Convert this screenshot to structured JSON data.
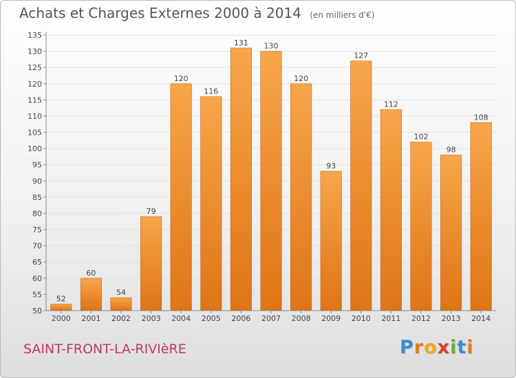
{
  "chart_data": {
    "type": "bar",
    "title": "Achats et Charges Externes 2000 à 2014",
    "subtitle": "(en milliers d'€)",
    "categories": [
      "2000",
      "2001",
      "2002",
      "2003",
      "2004",
      "2005",
      "2006",
      "2007",
      "2008",
      "2009",
      "2010",
      "2011",
      "2012",
      "2013",
      "2014"
    ],
    "values": [
      52,
      60,
      54,
      79,
      120,
      116,
      131,
      130,
      120,
      93,
      127,
      112,
      102,
      98,
      108
    ],
    "ylim": [
      50,
      135
    ],
    "yticks": [
      50,
      55,
      60,
      65,
      70,
      75,
      80,
      85,
      90,
      95,
      100,
      105,
      110,
      115,
      120,
      125,
      130,
      135
    ],
    "grid": true,
    "colors": {
      "bar_top": "#f7a64a",
      "bar_bottom": "#df7416",
      "bar_edge": "#c9681a",
      "grid": "#e2e2e2"
    }
  },
  "footer": {
    "city": "SAINT-FRONT-LA-RIVIèRE",
    "logo_letters": [
      "P",
      "r",
      "o",
      "x",
      "i",
      "t",
      "i"
    ],
    "logo_colors": [
      "#3a8fd1",
      "#e27a1f",
      "#f0a81c",
      "#e23a2a",
      "#6dae2c",
      "#3a8fd1",
      "#e27a1f"
    ]
  }
}
